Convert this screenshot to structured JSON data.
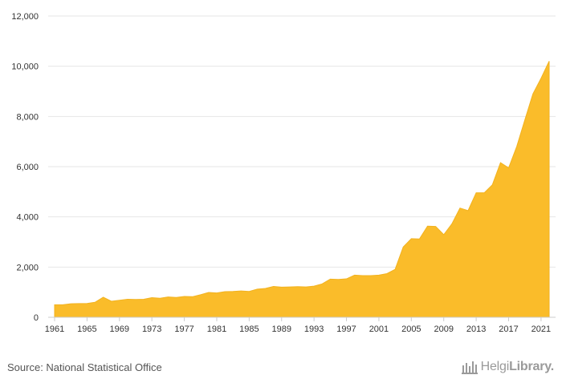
{
  "chart_data": {
    "type": "area",
    "x": [
      1961,
      1962,
      1963,
      1964,
      1965,
      1966,
      1967,
      1968,
      1969,
      1970,
      1971,
      1972,
      1973,
      1974,
      1975,
      1976,
      1977,
      1978,
      1979,
      1980,
      1981,
      1982,
      1983,
      1984,
      1985,
      1986,
      1987,
      1988,
      1989,
      1990,
      1991,
      1992,
      1993,
      1994,
      1995,
      1996,
      1997,
      1998,
      1999,
      2000,
      2001,
      2002,
      2003,
      2004,
      2005,
      2006,
      2007,
      2008,
      2009,
      2010,
      2011,
      2012,
      2013,
      2014,
      2015,
      2016,
      2017,
      2018,
      2019,
      2020,
      2021,
      2022
    ],
    "series": [
      {
        "values": [
          500,
          500,
          540,
          545,
          550,
          600,
          800,
          640,
          680,
          720,
          710,
          720,
          780,
          760,
          810,
          790,
          830,
          820,
          900,
          990,
          970,
          1020,
          1030,
          1050,
          1030,
          1120,
          1150,
          1230,
          1200,
          1210,
          1220,
          1210,
          1240,
          1330,
          1520,
          1510,
          1530,
          1680,
          1660,
          1660,
          1680,
          1740,
          1910,
          2800,
          3130,
          3120,
          3630,
          3620,
          3290,
          3720,
          4350,
          4250,
          4960,
          4960,
          5280,
          6160,
          5950,
          6800,
          7860,
          8900,
          9520,
          10200
        ]
      }
    ],
    "ylim": [
      0,
      12000
    ],
    "y_ticks": [
      0,
      2000,
      4000,
      6000,
      8000,
      10000,
      12000
    ],
    "y_tick_labels": [
      "0",
      "2,000",
      "4,000",
      "6,000",
      "8,000",
      "10,000",
      "12,000"
    ],
    "x_tick_labels": [
      "1961",
      "1965",
      "1969",
      "1973",
      "1977",
      "1981",
      "1985",
      "1989",
      "1993",
      "1997",
      "2001",
      "2005",
      "2009",
      "2013",
      "2017",
      "2021"
    ],
    "grid": true,
    "legend": "none",
    "fill_color": "#fabc2a",
    "stroke_color": "#f2b21f"
  },
  "footer": {
    "source": "Source: National Statistical Office",
    "brand_light": "Helgi",
    "brand_bold": "Library."
  }
}
